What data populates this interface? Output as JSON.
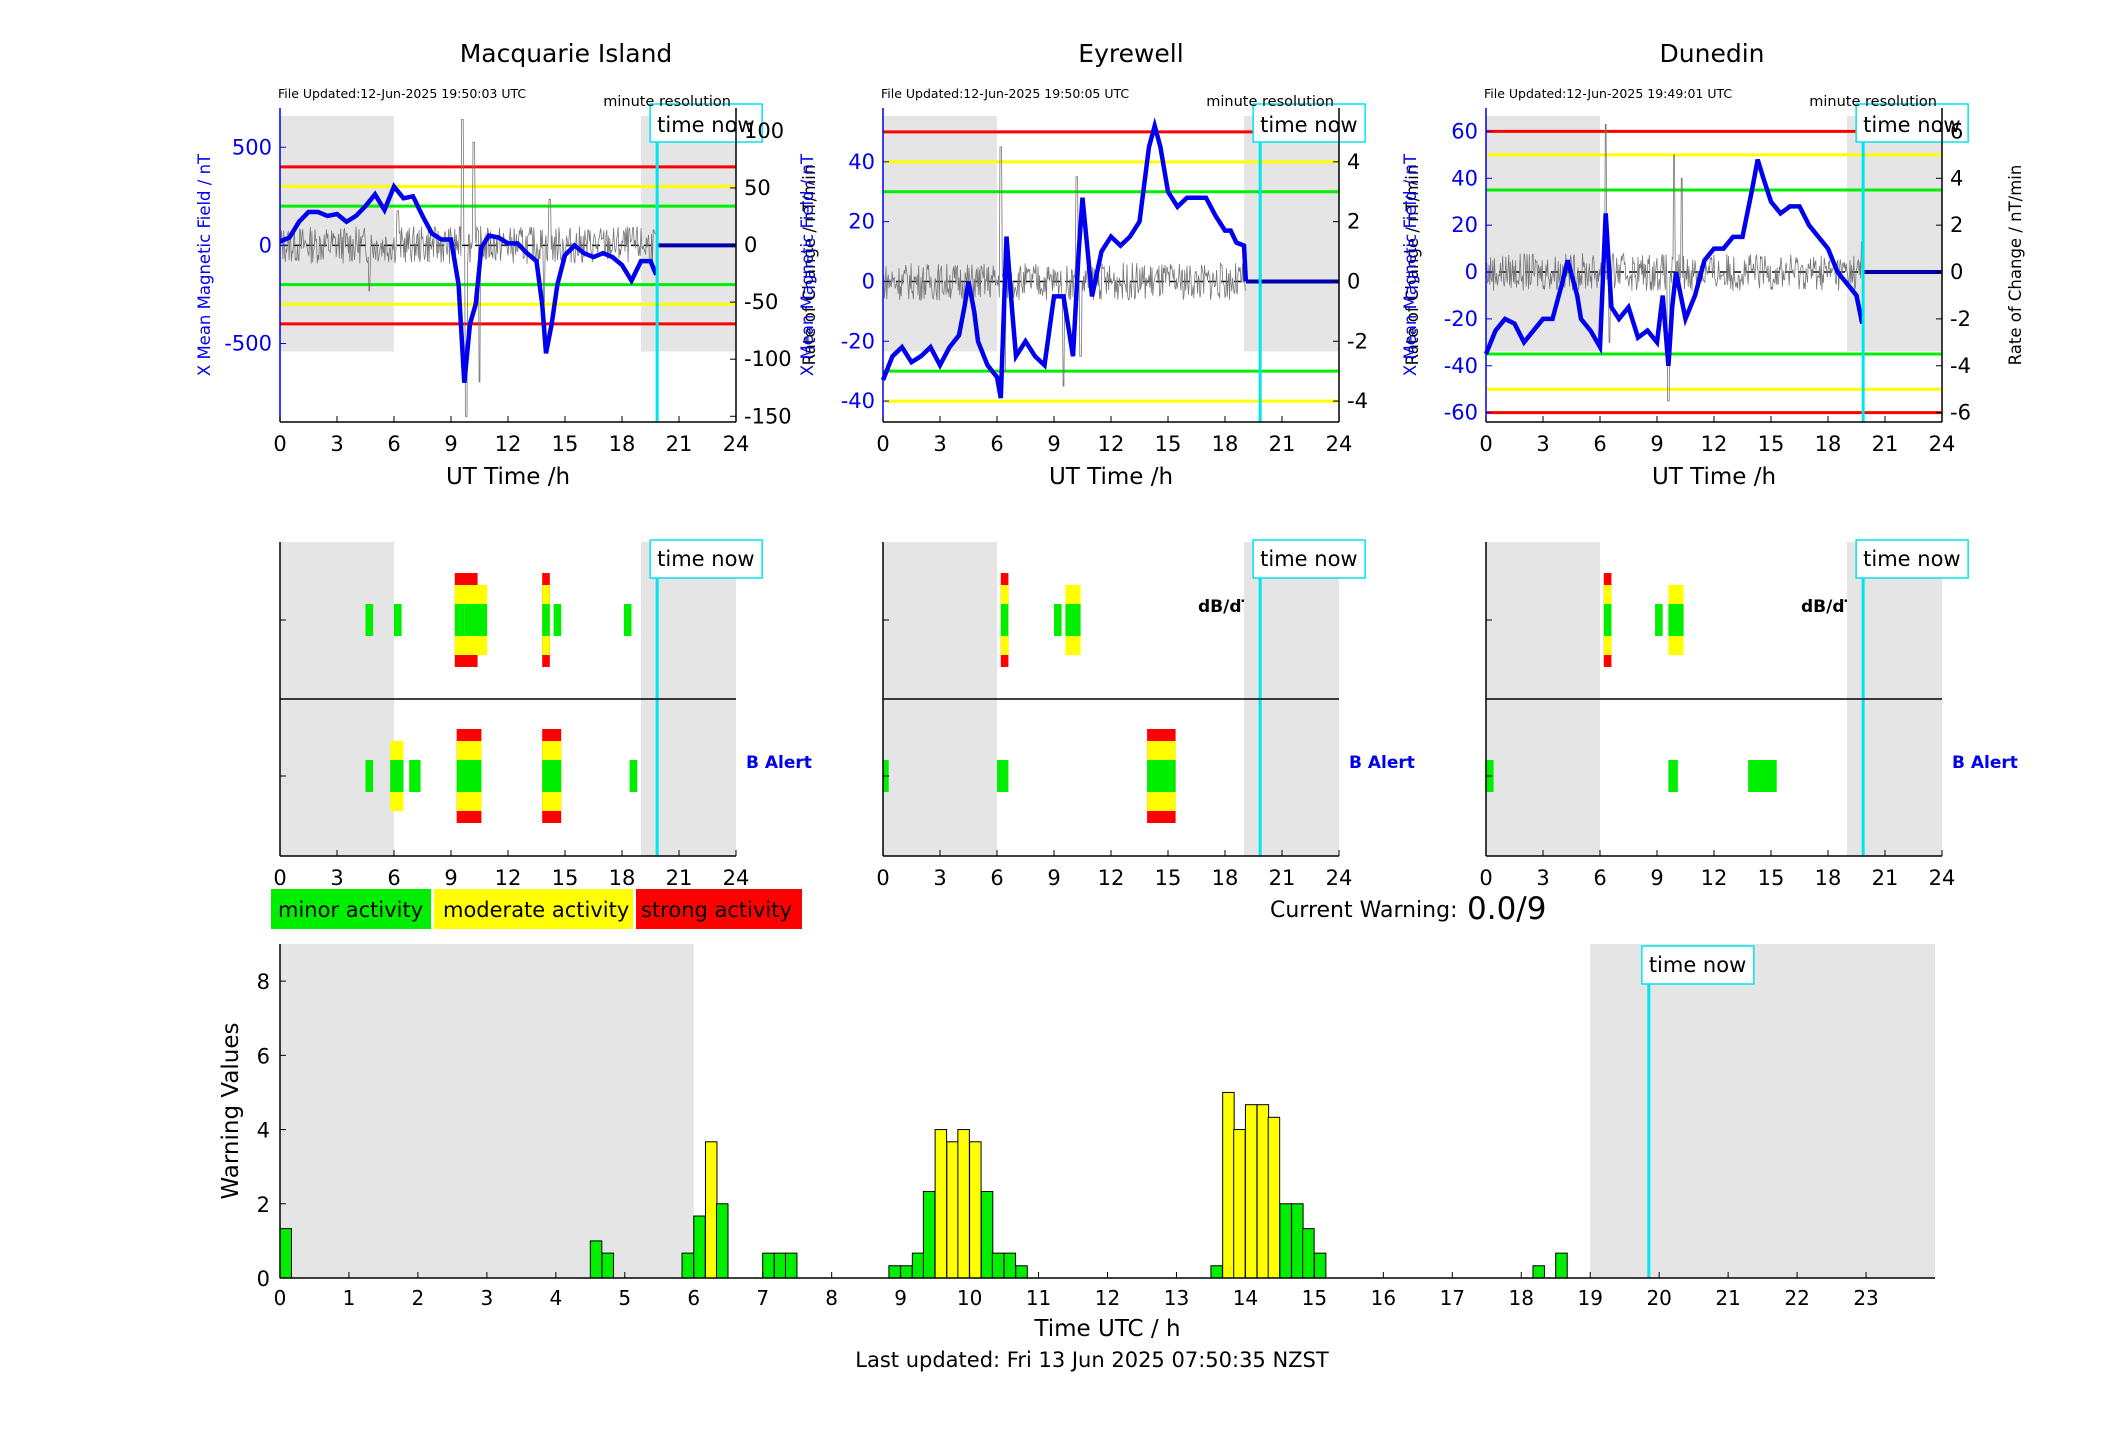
{
  "stations": [
    {
      "name": "Macquarie Island",
      "file_updated": "File Updated:12-Jun-2025 19:50:03 UTC",
      "resolution": "minute resolution",
      "left_ylabel": "X Mean Magnetic Field / nT",
      "right_ylabel": "Rate of Change / nT/min",
      "left_ylim": [
        -900,
        700
      ],
      "left_ticks": [
        500,
        0,
        -500
      ],
      "right_ylim": [
        -155,
        120
      ],
      "right_ticks": [
        100,
        50,
        0,
        -50,
        -100,
        -150
      ],
      "thresholds": {
        "red": [
          400,
          -400
        ],
        "yellow": [
          300,
          -300
        ],
        "green": [
          200,
          -200
        ]
      },
      "field_series": [
        [
          0,
          20
        ],
        [
          0.5,
          40
        ],
        [
          1,
          120
        ],
        [
          1.5,
          170
        ],
        [
          2,
          170
        ],
        [
          2.5,
          150
        ],
        [
          3,
          160
        ],
        [
          3.5,
          120
        ],
        [
          4,
          150
        ],
        [
          4.5,
          200
        ],
        [
          5,
          260
        ],
        [
          5.5,
          180
        ],
        [
          6,
          300
        ],
        [
          6.5,
          240
        ],
        [
          7,
          250
        ],
        [
          7.5,
          150
        ],
        [
          8,
          60
        ],
        [
          8.5,
          30
        ],
        [
          9,
          30
        ],
        [
          9.4,
          -200
        ],
        [
          9.7,
          -700
        ],
        [
          10,
          -400
        ],
        [
          10.3,
          -300
        ],
        [
          10.6,
          -10
        ],
        [
          11,
          50
        ],
        [
          11.5,
          40
        ],
        [
          12,
          10
        ],
        [
          12.5,
          10
        ],
        [
          13,
          -40
        ],
        [
          13.5,
          -80
        ],
        [
          13.8,
          -300
        ],
        [
          14,
          -550
        ],
        [
          14.3,
          -400
        ],
        [
          14.6,
          -200
        ],
        [
          15,
          -50
        ],
        [
          15.5,
          0
        ],
        [
          16,
          -40
        ],
        [
          16.5,
          -60
        ],
        [
          17,
          -40
        ],
        [
          17.5,
          -60
        ],
        [
          18,
          -100
        ],
        [
          18.5,
          -180
        ],
        [
          19,
          -80
        ],
        [
          19.5,
          -80
        ],
        [
          19.8,
          -150
        ]
      ],
      "flat_after": [
        19.83,
        24
      ],
      "flat_value": 0,
      "roc_spikes": [
        [
          9.6,
          110
        ],
        [
          9.8,
          -150
        ],
        [
          10.2,
          90
        ],
        [
          10.5,
          -120
        ],
        [
          6.2,
          30
        ],
        [
          4.7,
          -40
        ],
        [
          14.2,
          40
        ],
        [
          13.9,
          -50
        ]
      ]
    },
    {
      "name": "Eyrewell",
      "file_updated": "File Updated:12-Jun-2025 19:50:05 UTC",
      "resolution": "minute resolution",
      "left_ylabel": "X Mean Magnetic Field / nT",
      "right_ylabel": "Rate of Change / nT/min",
      "left_ylim": [
        -47,
        58
      ],
      "left_ticks": [
        40,
        20,
        0,
        -20,
        -40
      ],
      "right_ylim": [
        -4.7,
        5.8
      ],
      "right_ticks": [
        4,
        2,
        0,
        -2,
        -4
      ],
      "thresholds": {
        "red": [
          50
        ],
        "yellow": [
          40,
          -40
        ],
        "green": [
          30,
          -30
        ]
      },
      "field_series": [
        [
          0,
          -33
        ],
        [
          0.5,
          -25
        ],
        [
          1,
          -22
        ],
        [
          1.5,
          -27
        ],
        [
          2,
          -25
        ],
        [
          2.5,
          -22
        ],
        [
          3,
          -28
        ],
        [
          3.5,
          -22
        ],
        [
          4,
          -18
        ],
        [
          4.3,
          -8
        ],
        [
          4.5,
          0
        ],
        [
          4.8,
          -10
        ],
        [
          5,
          -20
        ],
        [
          5.5,
          -28
        ],
        [
          6,
          -32
        ],
        [
          6.2,
          -39
        ],
        [
          6.5,
          15
        ],
        [
          6.8,
          -10
        ],
        [
          7,
          -25
        ],
        [
          7.5,
          -20
        ],
        [
          8,
          -25
        ],
        [
          8.5,
          -28
        ],
        [
          9,
          -5
        ],
        [
          9.5,
          -5
        ],
        [
          10,
          -25
        ],
        [
          10.3,
          10
        ],
        [
          10.5,
          28
        ],
        [
          11,
          -5
        ],
        [
          11.5,
          10
        ],
        [
          12,
          15
        ],
        [
          12.5,
          12
        ],
        [
          13,
          15
        ],
        [
          13.5,
          20
        ],
        [
          14,
          45
        ],
        [
          14.3,
          52
        ],
        [
          14.6,
          45
        ],
        [
          15,
          30
        ],
        [
          15.5,
          25
        ],
        [
          16,
          28
        ],
        [
          16.5,
          28
        ],
        [
          17,
          28
        ],
        [
          17.5,
          22
        ],
        [
          18,
          17
        ],
        [
          18.3,
          17
        ],
        [
          18.6,
          13
        ],
        [
          19,
          12
        ],
        [
          19.1,
          0
        ]
      ],
      "flat_after": [
        19.1,
        24
      ],
      "flat_value": 0,
      "roc_spikes": [
        [
          6.2,
          4.5
        ],
        [
          6.4,
          -3
        ],
        [
          10.2,
          3.5
        ],
        [
          10.4,
          -2.5
        ],
        [
          9.5,
          -3.5
        ]
      ]
    },
    {
      "name": "Dunedin",
      "file_updated": "File Updated:12-Jun-2025 19:49:01 UTC",
      "resolution": "minute resolution",
      "left_ylabel": "X Mean Magnetic Field / nT",
      "right_ylabel": "Rate of Change / nT/min",
      "left_ylim": [
        -64,
        70
      ],
      "left_ticks": [
        60,
        40,
        20,
        0,
        -20,
        -40,
        -60
      ],
      "right_ylim": [
        -6.4,
        7
      ],
      "right_ticks": [
        6,
        4,
        2,
        0,
        -2,
        -4,
        -6
      ],
      "thresholds": {
        "red": [
          60,
          -60
        ],
        "yellow": [
          50,
          -50
        ],
        "green": [
          35,
          -35
        ]
      },
      "field_series": [
        [
          0,
          -35
        ],
        [
          0.5,
          -25
        ],
        [
          1,
          -20
        ],
        [
          1.5,
          -22
        ],
        [
          2,
          -30
        ],
        [
          2.5,
          -25
        ],
        [
          3,
          -20
        ],
        [
          3.5,
          -20
        ],
        [
          4,
          -5
        ],
        [
          4.3,
          5
        ],
        [
          4.8,
          -10
        ],
        [
          5,
          -20
        ],
        [
          5.5,
          -25
        ],
        [
          6,
          -32
        ],
        [
          6.3,
          25
        ],
        [
          6.6,
          -15
        ],
        [
          7,
          -20
        ],
        [
          7.5,
          -15
        ],
        [
          8,
          -28
        ],
        [
          8.5,
          -25
        ],
        [
          9,
          -30
        ],
        [
          9.3,
          -10
        ],
        [
          9.6,
          -40
        ],
        [
          9.8,
          -15
        ],
        [
          10,
          0
        ],
        [
          10.5,
          -20
        ],
        [
          11,
          -10
        ],
        [
          11.5,
          5
        ],
        [
          12,
          10
        ],
        [
          12.5,
          10
        ],
        [
          13,
          15
        ],
        [
          13.5,
          15
        ],
        [
          14,
          35
        ],
        [
          14.3,
          48
        ],
        [
          14.6,
          40
        ],
        [
          15,
          30
        ],
        [
          15.5,
          25
        ],
        [
          16,
          28
        ],
        [
          16.5,
          28
        ],
        [
          17,
          20
        ],
        [
          17.5,
          15
        ],
        [
          18,
          10
        ],
        [
          18.5,
          0
        ],
        [
          19,
          -5
        ],
        [
          19.5,
          -10
        ],
        [
          19.8,
          -22
        ]
      ],
      "flat_after": [
        19.83,
        24
      ],
      "flat_value": 0,
      "roc_spikes": [
        [
          6.3,
          6.3
        ],
        [
          6.5,
          -3
        ],
        [
          9.6,
          -5.5
        ],
        [
          9.9,
          5
        ],
        [
          10.3,
          4
        ],
        [
          19.8,
          1.3
        ]
      ]
    }
  ],
  "time_ticks": [
    0,
    3,
    6,
    9,
    12,
    15,
    18,
    21,
    24
  ],
  "time_xlabel": "UT Time /h",
  "time_now_label": "time now",
  "time_now_hour": 19.85,
  "night_shading": [
    [
      0,
      6
    ],
    [
      19,
      24
    ]
  ],
  "alert_panels": {
    "dbdt_label": "dB/dT Alert",
    "b_label": "B Alert",
    "stations": [
      {
        "dbdt": [
          {
            "x0": 4.5,
            "x1": 4.9,
            "levels": [
              "green"
            ]
          },
          {
            "x0": 6.0,
            "x1": 6.4,
            "levels": [
              "green"
            ]
          },
          {
            "x0": 9.2,
            "x1": 10.4,
            "levels": [
              "red",
              "yellow",
              "green"
            ]
          },
          {
            "x0": 9.7,
            "x1": 10.9,
            "levels": [
              "yellow",
              "green"
            ]
          },
          {
            "x0": 13.8,
            "x1": 14.2,
            "levels": [
              "red",
              "yellow",
              "green"
            ]
          },
          {
            "x0": 14.4,
            "x1": 14.8,
            "levels": [
              "green"
            ]
          },
          {
            "x0": 18.1,
            "x1": 18.5,
            "levels": [
              "green"
            ]
          }
        ],
        "b": [
          {
            "x0": 4.5,
            "x1": 4.9,
            "levels": [
              "green"
            ]
          },
          {
            "x0": 5.8,
            "x1": 6.5,
            "levels": [
              "yellow",
              "green"
            ]
          },
          {
            "x0": 6.8,
            "x1": 7.4,
            "levels": [
              "green"
            ]
          },
          {
            "x0": 9.3,
            "x1": 10.6,
            "levels": [
              "red",
              "yellow",
              "green"
            ]
          },
          {
            "x0": 13.8,
            "x1": 14.8,
            "levels": [
              "red",
              "yellow",
              "green"
            ]
          },
          {
            "x0": 18.4,
            "x1": 18.8,
            "levels": [
              "green"
            ]
          }
        ]
      },
      {
        "dbdt": [
          {
            "x0": 6.2,
            "x1": 6.6,
            "levels": [
              "red",
              "yellow",
              "green"
            ]
          },
          {
            "x0": 9.0,
            "x1": 9.4,
            "levels": [
              "green"
            ]
          },
          {
            "x0": 9.6,
            "x1": 10.4,
            "levels": [
              "yellow",
              "green"
            ]
          }
        ],
        "b": [
          {
            "x0": 0.0,
            "x1": 0.3,
            "levels": [
              "green"
            ]
          },
          {
            "x0": 6.0,
            "x1": 6.6,
            "levels": [
              "green"
            ]
          },
          {
            "x0": 13.9,
            "x1": 15.4,
            "levels": [
              "red",
              "yellow",
              "green"
            ]
          }
        ]
      },
      {
        "dbdt": [
          {
            "x0": 6.2,
            "x1": 6.6,
            "levels": [
              "red",
              "yellow",
              "green"
            ]
          },
          {
            "x0": 8.9,
            "x1": 9.3,
            "levels": [
              "green"
            ]
          },
          {
            "x0": 9.6,
            "x1": 10.4,
            "levels": [
              "yellow",
              "green"
            ]
          }
        ],
        "b": [
          {
            "x0": 0.0,
            "x1": 0.4,
            "levels": [
              "green"
            ]
          },
          {
            "x0": 9.6,
            "x1": 10.1,
            "levels": [
              "green"
            ]
          },
          {
            "x0": 13.8,
            "x1": 15.3,
            "levels": [
              "green"
            ]
          }
        ]
      }
    ]
  },
  "legend": [
    {
      "label": "minor activity",
      "color": "#00ee00"
    },
    {
      "label": "moderate activity",
      "color": "#ffff00"
    },
    {
      "label": "strong activity",
      "color": "#ff0000"
    }
  ],
  "current_warning_label": "Current Warning:",
  "current_warning_value": "0.0/9",
  "colors": {
    "red": "#ff0000",
    "yellow": "#ffff00",
    "green": "#00ee00",
    "blue": "#0000ee",
    "cyan": "#00e5ee",
    "shade": "#e5e5e5"
  },
  "chart_data": {
    "type": "bar",
    "xlabel": "Time UTC / h",
    "ylabel": "Warning Values",
    "ylim": [
      0,
      9
    ],
    "xlim": [
      0,
      24
    ],
    "y_ticks": [
      0,
      2,
      4,
      6,
      8
    ],
    "x_ticks": [
      0,
      1,
      2,
      3,
      4,
      5,
      6,
      7,
      8,
      9,
      10,
      11,
      12,
      13,
      14,
      15,
      16,
      17,
      18,
      19,
      20,
      21,
      22,
      23
    ],
    "bar_width_h": 0.1667,
    "bars": [
      {
        "x": 0.0,
        "value": 1.33,
        "color": "green"
      },
      {
        "x": 4.5,
        "value": 1.0,
        "color": "green"
      },
      {
        "x": 4.67,
        "value": 0.67,
        "color": "green"
      },
      {
        "x": 5.83,
        "value": 0.67,
        "color": "green"
      },
      {
        "x": 6.0,
        "value": 1.67,
        "color": "green"
      },
      {
        "x": 6.17,
        "value": 3.67,
        "color": "yellow"
      },
      {
        "x": 6.33,
        "value": 2.0,
        "color": "green"
      },
      {
        "x": 7.0,
        "value": 0.67,
        "color": "green"
      },
      {
        "x": 7.17,
        "value": 0.67,
        "color": "green"
      },
      {
        "x": 7.33,
        "value": 0.67,
        "color": "green"
      },
      {
        "x": 8.83,
        "value": 0.33,
        "color": "green"
      },
      {
        "x": 9.0,
        "value": 0.33,
        "color": "green"
      },
      {
        "x": 9.17,
        "value": 0.67,
        "color": "green"
      },
      {
        "x": 9.33,
        "value": 2.33,
        "color": "green"
      },
      {
        "x": 9.5,
        "value": 4.0,
        "color": "yellow"
      },
      {
        "x": 9.67,
        "value": 3.67,
        "color": "yellow"
      },
      {
        "x": 9.83,
        "value": 4.0,
        "color": "yellow"
      },
      {
        "x": 10.0,
        "value": 3.67,
        "color": "yellow"
      },
      {
        "x": 10.17,
        "value": 2.33,
        "color": "green"
      },
      {
        "x": 10.33,
        "value": 0.67,
        "color": "green"
      },
      {
        "x": 10.5,
        "value": 0.67,
        "color": "green"
      },
      {
        "x": 10.67,
        "value": 0.33,
        "color": "green"
      },
      {
        "x": 13.5,
        "value": 0.33,
        "color": "green"
      },
      {
        "x": 13.67,
        "value": 5.0,
        "color": "yellow"
      },
      {
        "x": 13.83,
        "value": 4.0,
        "color": "yellow"
      },
      {
        "x": 14.0,
        "value": 4.67,
        "color": "yellow"
      },
      {
        "x": 14.17,
        "value": 4.67,
        "color": "yellow"
      },
      {
        "x": 14.33,
        "value": 4.33,
        "color": "yellow"
      },
      {
        "x": 14.5,
        "value": 2.0,
        "color": "green"
      },
      {
        "x": 14.67,
        "value": 2.0,
        "color": "green"
      },
      {
        "x": 14.83,
        "value": 1.33,
        "color": "green"
      },
      {
        "x": 15.0,
        "value": 0.67,
        "color": "green"
      },
      {
        "x": 18.17,
        "value": 0.33,
        "color": "green"
      },
      {
        "x": 18.5,
        "value": 0.67,
        "color": "green"
      }
    ]
  },
  "last_updated": "Last updated: Fri 13 Jun 2025 07:50:35 NZST"
}
